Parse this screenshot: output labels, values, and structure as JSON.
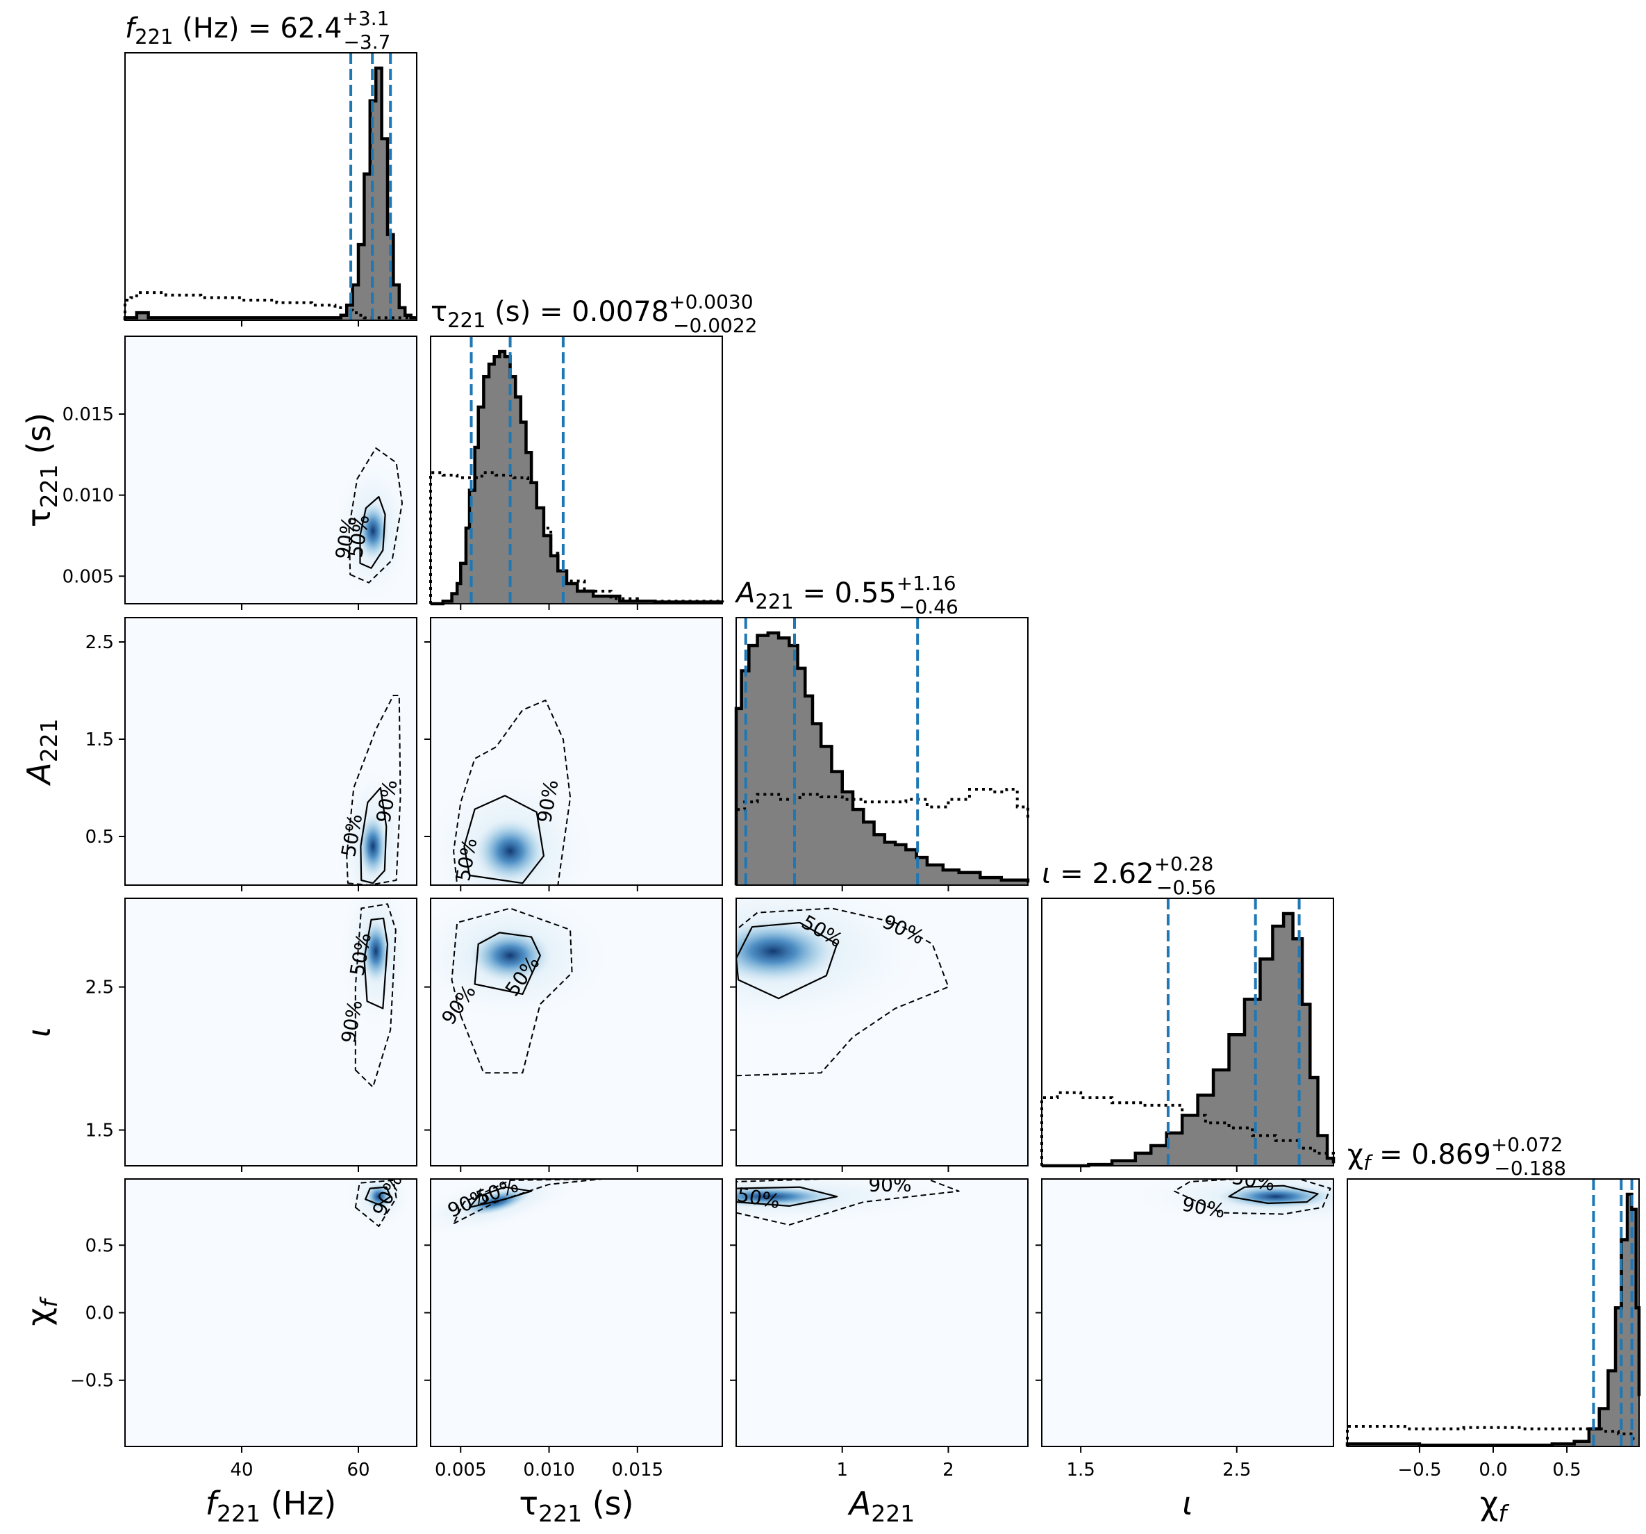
{
  "chart_data": {
    "type": "corner",
    "parameters": [
      {
        "key": "f221",
        "axis_label": "f221 (Hz)",
        "lim": [
          20,
          70
        ],
        "ticks": [
          40,
          60
        ],
        "tick_labels": [
          "40",
          "60"
        ],
        "title": {
          "prefix": "f221 (Hz) = ",
          "median": "62.4",
          "plus": "+3.1",
          "minus": "−3.7"
        },
        "quantiles": [
          58.7,
          62.4,
          65.5
        ]
      },
      {
        "key": "tau221",
        "axis_label": "τ221 (s)",
        "lim": [
          0.0033,
          0.0198
        ],
        "ticks": [
          0.005,
          0.01,
          0.015
        ],
        "tick_labels": [
          "0.005",
          "0.010",
          "0.015"
        ],
        "title": {
          "prefix": "τ221 (s) = ",
          "median": "0.0078",
          "plus": "+0.0030",
          "minus": "−0.0022"
        },
        "quantiles": [
          0.0056,
          0.0078,
          0.0108
        ]
      },
      {
        "key": "A221",
        "axis_label": "A221",
        "lim": [
          0.0,
          2.75
        ],
        "ticks": [
          0.5,
          1.5,
          2.5
        ],
        "tick_labels": [
          "0.5",
          "1.5",
          "2.5"
        ],
        "x_ticks": [
          1,
          2
        ],
        "x_tick_labels": [
          "1",
          "2"
        ],
        "title": {
          "prefix": "A221 = ",
          "median": "0.55",
          "plus": "+1.16",
          "minus": "−0.46"
        },
        "quantiles": [
          0.09,
          0.55,
          1.71
        ]
      },
      {
        "key": "iota",
        "axis_label": "ι",
        "lim": [
          1.25,
          3.12
        ],
        "ticks": [
          1.5,
          2.5
        ],
        "tick_labels": [
          "1.5",
          "2.5"
        ],
        "x_ticks": [
          1.5,
          2.5
        ],
        "x_tick_labels": [
          "1.5",
          "2.5"
        ],
        "title": {
          "prefix": "ι = ",
          "median": "2.62",
          "plus": "+0.28",
          "minus": "−0.56"
        },
        "quantiles": [
          2.06,
          2.62,
          2.9
        ]
      },
      {
        "key": "chi_f",
        "axis_label": "χf",
        "lim": [
          -0.99,
          0.99
        ],
        "ticks": [
          -0.5,
          0.0,
          0.5
        ],
        "tick_labels": [
          "−0.5",
          "0.0",
          "0.5"
        ],
        "title": {
          "prefix": "χf = ",
          "median": "0.869",
          "plus": "+0.072",
          "minus": "−0.188"
        },
        "quantiles": [
          0.681,
          0.869,
          0.941
        ]
      }
    ],
    "histograms": {
      "f221": {
        "posterior": [
          [
            20,
            0.01
          ],
          [
            21,
            0.01
          ],
          [
            22,
            0.03
          ],
          [
            23,
            0.03
          ],
          [
            24,
            0.01
          ],
          [
            26,
            0.01
          ],
          [
            28,
            0.01
          ],
          [
            30,
            0.01
          ],
          [
            40,
            0.01
          ],
          [
            55,
            0.01
          ],
          [
            57,
            0.02
          ],
          [
            58,
            0.06
          ],
          [
            59,
            0.14
          ],
          [
            60,
            0.3
          ],
          [
            61,
            0.58
          ],
          [
            62,
            0.87
          ],
          [
            63,
            1.0
          ],
          [
            64,
            0.72
          ],
          [
            65,
            0.34
          ],
          [
            66,
            0.14
          ],
          [
            67,
            0.05
          ],
          [
            68,
            0.02
          ],
          [
            69,
            0.01
          ]
        ],
        "prior": [
          [
            20,
            0.08
          ],
          [
            21,
            0.09
          ],
          [
            22,
            0.11
          ],
          [
            23,
            0.11
          ],
          [
            27,
            0.1
          ],
          [
            33,
            0.09
          ],
          [
            40,
            0.08
          ],
          [
            46,
            0.07
          ],
          [
            52,
            0.06
          ],
          [
            56,
            0.05
          ],
          [
            58,
            0.04
          ],
          [
            59,
            0.03
          ],
          [
            60,
            0.02
          ],
          [
            61,
            0.01
          ]
        ]
      },
      "tau221": {
        "posterior": [
          [
            0.0033,
            0.0
          ],
          [
            0.004,
            0.01
          ],
          [
            0.0045,
            0.04
          ],
          [
            0.0048,
            0.08
          ],
          [
            0.005,
            0.16
          ],
          [
            0.0053,
            0.3
          ],
          [
            0.0055,
            0.45
          ],
          [
            0.0058,
            0.62
          ],
          [
            0.006,
            0.78
          ],
          [
            0.0063,
            0.9
          ],
          [
            0.0066,
            0.95
          ],
          [
            0.0069,
            0.98
          ],
          [
            0.0072,
            1.0
          ],
          [
            0.0075,
            0.98
          ],
          [
            0.0078,
            0.9
          ],
          [
            0.0081,
            0.82
          ],
          [
            0.0084,
            0.72
          ],
          [
            0.0087,
            0.6
          ],
          [
            0.009,
            0.48
          ],
          [
            0.0093,
            0.38
          ],
          [
            0.0097,
            0.27
          ],
          [
            0.0101,
            0.19
          ],
          [
            0.0105,
            0.13
          ],
          [
            0.011,
            0.08
          ],
          [
            0.0116,
            0.05
          ],
          [
            0.0125,
            0.03
          ],
          [
            0.014,
            0.01
          ],
          [
            0.016,
            0.007
          ],
          [
            0.0198,
            0.005
          ]
        ],
        "prior": [
          [
            0.0033,
            0.52
          ],
          [
            0.004,
            0.51
          ],
          [
            0.0048,
            0.5
          ],
          [
            0.0055,
            0.5
          ],
          [
            0.0062,
            0.52
          ],
          [
            0.007,
            0.51
          ],
          [
            0.008,
            0.5
          ],
          [
            0.0088,
            0.48
          ],
          [
            0.0093,
            0.38
          ],
          [
            0.0097,
            0.3
          ],
          [
            0.0101,
            0.2
          ],
          [
            0.0105,
            0.13
          ],
          [
            0.011,
            0.09
          ],
          [
            0.012,
            0.05
          ],
          [
            0.0135,
            0.02
          ],
          [
            0.015,
            0.01
          ],
          [
            0.0198,
            0.005
          ]
        ]
      },
      "A221": {
        "posterior": [
          [
            0.0,
            0.7
          ],
          [
            0.05,
            0.85
          ],
          [
            0.12,
            0.95
          ],
          [
            0.2,
            0.99
          ],
          [
            0.3,
            1.0
          ],
          [
            0.4,
            0.98
          ],
          [
            0.5,
            0.95
          ],
          [
            0.58,
            0.86
          ],
          [
            0.65,
            0.75
          ],
          [
            0.72,
            0.64
          ],
          [
            0.8,
            0.55
          ],
          [
            0.9,
            0.45
          ],
          [
            1.0,
            0.37
          ],
          [
            1.1,
            0.3
          ],
          [
            1.2,
            0.25
          ],
          [
            1.3,
            0.2
          ],
          [
            1.4,
            0.17
          ],
          [
            1.5,
            0.16
          ],
          [
            1.6,
            0.14
          ],
          [
            1.7,
            0.11
          ],
          [
            1.8,
            0.08
          ],
          [
            1.95,
            0.06
          ],
          [
            2.1,
            0.05
          ],
          [
            2.3,
            0.03
          ],
          [
            2.5,
            0.02
          ],
          [
            2.75,
            0.01
          ]
        ],
        "prior": [
          [
            0.0,
            0.3
          ],
          [
            0.08,
            0.33
          ],
          [
            0.2,
            0.36
          ],
          [
            0.4,
            0.34
          ],
          [
            0.6,
            0.36
          ],
          [
            0.8,
            0.35
          ],
          [
            1.0,
            0.34
          ],
          [
            1.2,
            0.33
          ],
          [
            1.4,
            0.33
          ],
          [
            1.6,
            0.34
          ],
          [
            1.8,
            0.31
          ],
          [
            2.0,
            0.34
          ],
          [
            2.2,
            0.38
          ],
          [
            2.4,
            0.37
          ],
          [
            2.55,
            0.38
          ],
          [
            2.65,
            0.31
          ],
          [
            2.75,
            0.26
          ]
        ]
      },
      "iota": {
        "posterior": [
          [
            1.25,
            0.0
          ],
          [
            1.55,
            0.005
          ],
          [
            1.7,
            0.02
          ],
          [
            1.85,
            0.05
          ],
          [
            1.95,
            0.08
          ],
          [
            2.05,
            0.13
          ],
          [
            2.15,
            0.2
          ],
          [
            2.25,
            0.28
          ],
          [
            2.35,
            0.38
          ],
          [
            2.45,
            0.52
          ],
          [
            2.55,
            0.66
          ],
          [
            2.65,
            0.82
          ],
          [
            2.73,
            0.95
          ],
          [
            2.8,
            1.0
          ],
          [
            2.86,
            0.9
          ],
          [
            2.92,
            0.64
          ],
          [
            2.97,
            0.35
          ],
          [
            3.02,
            0.12
          ],
          [
            3.08,
            0.03
          ],
          [
            3.12,
            0.01
          ]
        ],
        "prior": [
          [
            1.25,
            0.27
          ],
          [
            1.35,
            0.29
          ],
          [
            1.5,
            0.27
          ],
          [
            1.7,
            0.25
          ],
          [
            1.9,
            0.24
          ],
          [
            2.05,
            0.24
          ],
          [
            2.15,
            0.2
          ],
          [
            2.3,
            0.17
          ],
          [
            2.45,
            0.15
          ],
          [
            2.6,
            0.12
          ],
          [
            2.75,
            0.1
          ],
          [
            2.9,
            0.07
          ],
          [
            3.0,
            0.05
          ],
          [
            3.12,
            0.02
          ]
        ]
      },
      "chi_f": {
        "posterior": [
          [
            -0.99,
            0.01
          ],
          [
            -0.5,
            0.005
          ],
          [
            0.4,
            0.01
          ],
          [
            0.55,
            0.02
          ],
          [
            0.65,
            0.07
          ],
          [
            0.72,
            0.15
          ],
          [
            0.78,
            0.3
          ],
          [
            0.83,
            0.55
          ],
          [
            0.87,
            0.82
          ],
          [
            0.91,
            1.0
          ],
          [
            0.94,
            0.94
          ],
          [
            0.97,
            0.55
          ],
          [
            0.99,
            0.2
          ]
        ],
        "prior": [
          [
            -0.99,
            0.08
          ],
          [
            -0.6,
            0.07
          ],
          [
            -0.2,
            0.075
          ],
          [
            0.2,
            0.07
          ],
          [
            0.6,
            0.07
          ],
          [
            0.75,
            0.06
          ],
          [
            0.85,
            0.05
          ],
          [
            0.95,
            0.03
          ]
        ]
      }
    },
    "contour_labels": [
      "50%",
      "90%"
    ],
    "colors": {
      "hist_fill": "#808080",
      "quantile_line": "#1f77b4",
      "density": "#08306b"
    }
  }
}
